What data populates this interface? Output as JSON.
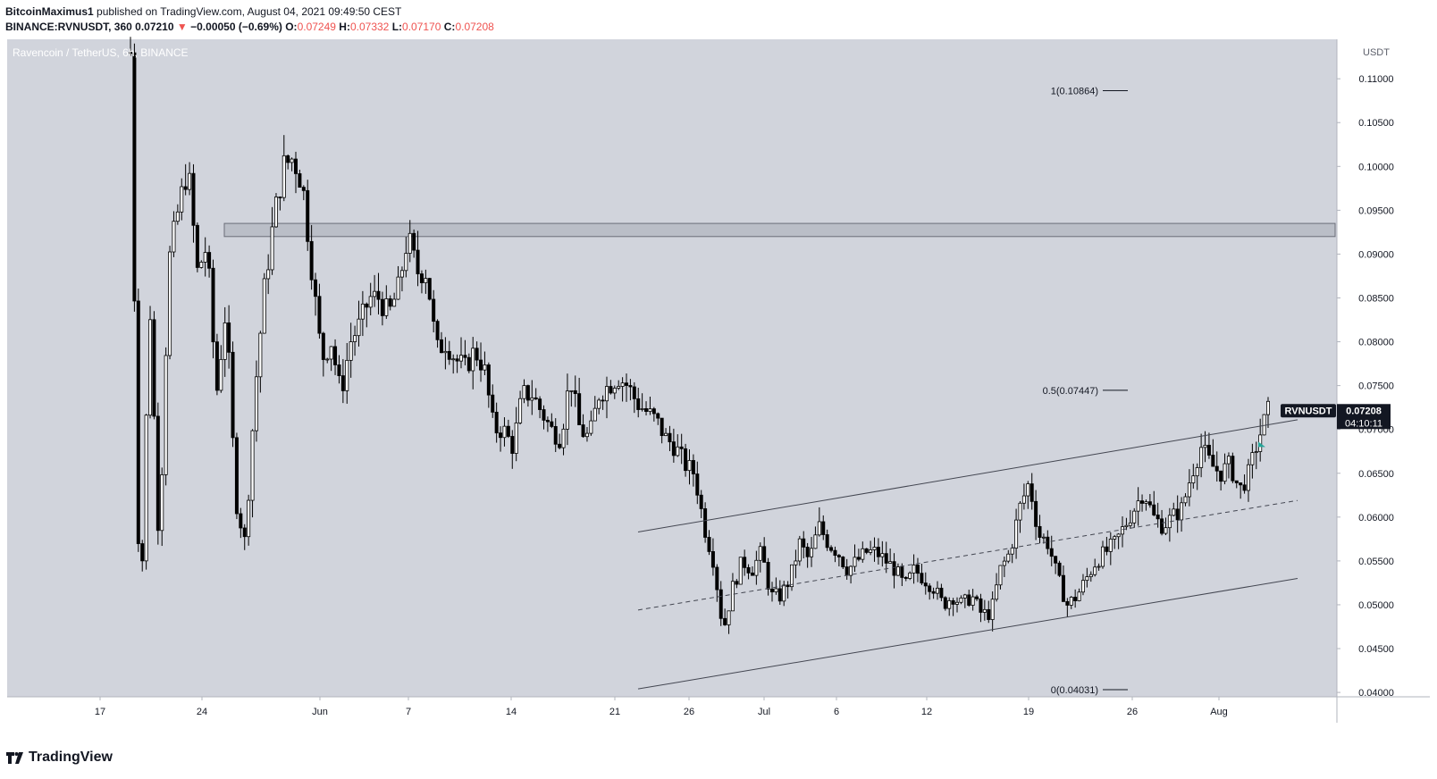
{
  "header": {
    "author": "BitcoinMaximus1",
    "published_text": "published on TradingView.com, August 04, 2021 09:49:50 CEST",
    "symbol_line": "BINANCE:RVNUSDT, 360",
    "last_price": "0.07210",
    "change_arrow": "▼",
    "change": "−0.00050 (−0.69%)",
    "o_label": "O:",
    "o_value": "0.07249",
    "h_label": "H:",
    "h_value": "0.07332",
    "l_label": "L:",
    "l_value": "0.07170",
    "c_label": "C:",
    "c_value": "0.07208"
  },
  "footer": {
    "brand": "TradingView"
  },
  "colors": {
    "background": "#d1d4dc",
    "candle": "#000000",
    "axis_bg": "#ffffff",
    "price_tag": "#131722",
    "negative": "#ef5350",
    "marker": "#26a69a"
  },
  "chart_data": {
    "type": "candlestick",
    "title": "Ravencoin / TetherUS, 6h, BINANCE",
    "ylabel": "USDT",
    "ylim": [
      0.0395,
      0.1145
    ],
    "x_ticks": [
      "17",
      "24",
      "Jun",
      "7",
      "14",
      "21",
      "26",
      "Jul",
      "6",
      "12",
      "19",
      "26",
      "Aug"
    ],
    "y_ticks": [
      "0.11000",
      "0.10500",
      "0.10000",
      "0.09500",
      "0.09000",
      "0.08500",
      "0.08000",
      "0.07500",
      "0.07000",
      "0.06500",
      "0.06000",
      "0.05500",
      "0.05000",
      "0.04500",
      "0.04000"
    ],
    "price_tag": {
      "symbol": "RVNUSDT",
      "price": "0.07208",
      "countdown": "04:10:11",
      "value": 0.07208
    },
    "fib_levels": [
      {
        "label": "1(0.10864)",
        "value": 0.10864
      },
      {
        "label": "0.5(0.07447)",
        "value": 0.07447
      },
      {
        "label": "0(0.04031)",
        "value": 0.04031
      }
    ],
    "resistance_zone": {
      "low": 0.092,
      "high": 0.0935
    },
    "channel": {
      "upper": [
        0.0583,
        0.0711
      ],
      "middle": [
        0.0494,
        0.0619
      ],
      "lower": [
        0.0404,
        0.053
      ]
    },
    "grid": false,
    "price_path": [
      [
        0.113,
        0.046
      ],
      [
        0.085,
        0.056
      ],
      [
        0.089,
        0.095
      ],
      [
        0.1,
        0.088
      ],
      [
        0.091,
        0.074
      ],
      [
        0.084,
        0.062
      ],
      [
        0.057,
        0.074
      ],
      [
        0.086,
        0.094
      ],
      [
        0.1,
        0.101
      ],
      [
        0.098,
        0.088
      ],
      [
        0.078,
        0.08
      ],
      [
        0.074,
        0.08
      ],
      [
        0.082,
        0.085
      ],
      [
        0.085,
        0.083
      ],
      [
        0.086,
        0.092
      ],
      [
        0.088,
        0.088
      ],
      [
        0.079,
        0.08
      ],
      [
        0.078,
        0.077
      ],
      [
        0.079,
        0.077
      ],
      [
        0.07,
        0.07
      ],
      [
        0.068,
        0.074
      ],
      [
        0.074,
        0.072
      ],
      [
        0.07,
        0.069
      ],
      [
        0.076,
        0.07
      ],
      [
        0.069,
        0.074
      ],
      [
        0.075,
        0.076
      ],
      [
        0.075,
        0.073
      ],
      [
        0.072,
        0.071
      ],
      [
        0.069,
        0.068
      ],
      [
        0.066,
        0.065
      ],
      [
        0.059,
        0.055
      ],
      [
        0.047,
        0.052
      ],
      [
        0.055,
        0.054
      ],
      [
        0.056,
        0.051
      ],
      [
        0.051,
        0.053
      ],
      [
        0.057,
        0.055
      ],
      [
        0.059,
        0.057
      ],
      [
        0.056,
        0.054
      ],
      [
        0.055,
        0.056
      ],
      [
        0.056,
        0.055
      ],
      [
        0.054,
        0.052
      ],
      [
        0.054,
        0.053
      ],
      [
        0.052,
        0.05
      ],
      [
        0.051,
        0.05
      ],
      [
        0.051,
        0.049
      ],
      [
        0.049,
        0.054
      ],
      [
        0.056,
        0.061
      ],
      [
        0.064,
        0.058
      ],
      [
        0.057,
        0.053
      ],
      [
        0.05,
        0.051
      ],
      [
        0.053,
        0.055
      ],
      [
        0.056,
        0.057
      ],
      [
        0.059,
        0.061
      ],
      [
        0.063,
        0.06
      ],
      [
        0.059,
        0.06
      ],
      [
        0.061,
        0.065
      ],
      [
        0.068,
        0.066
      ],
      [
        0.065,
        0.066
      ],
      [
        0.063,
        0.065
      ],
      [
        0.069,
        0.0721
      ]
    ],
    "marker": {
      "value": 0.0682
    }
  }
}
